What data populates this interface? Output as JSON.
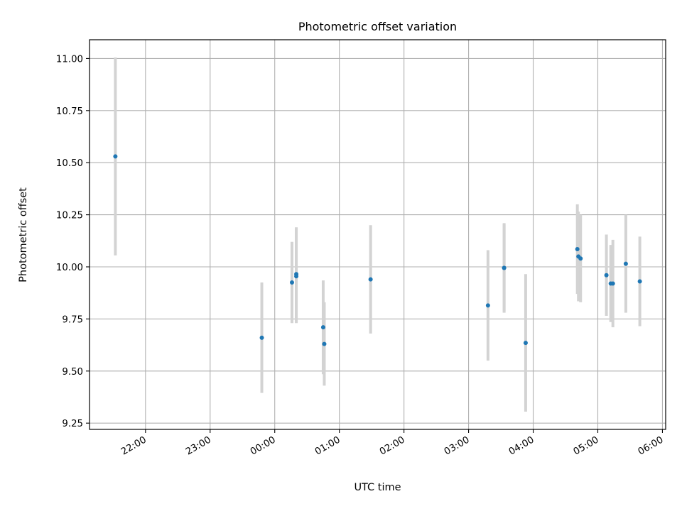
{
  "chart_data": {
    "type": "scatter",
    "title": "Photometric offset variation",
    "xlabel": "UTC time",
    "ylabel": "Photometric offset",
    "grid": true,
    "ylim": [
      9.22,
      11.09
    ],
    "xlim": [
      "21:08",
      "06:03"
    ],
    "yticks": [
      9.25,
      9.5,
      9.75,
      10.0,
      10.25,
      10.5,
      10.75,
      11.0
    ],
    "ytick_labels": [
      "9.25",
      "9.50",
      "9.75",
      "10.00",
      "10.25",
      "10.50",
      "10.75",
      "11.00"
    ],
    "xticks": [
      "22:00",
      "23:00",
      "00:00",
      "01:00",
      "02:00",
      "03:00",
      "04:00",
      "05:00",
      "06:00"
    ],
    "point_color": "#1f77b4",
    "errorbar_color": "#d3d3d3",
    "series": [
      {
        "points": [
          {
            "x": "21:32",
            "y": 10.53,
            "err": 0.475
          },
          {
            "x": "23:48",
            "y": 9.66,
            "err": 0.265
          },
          {
            "x": "00:16",
            "y": 9.925,
            "err": 0.195
          },
          {
            "x": "00:20",
            "y": 9.965,
            "err": 0.225
          },
          {
            "x": "00:20",
            "y": 9.955,
            "err": 0.225
          },
          {
            "x": "00:45",
            "y": 9.71,
            "err": 0.225
          },
          {
            "x": "00:46",
            "y": 9.63,
            "err": 0.2
          },
          {
            "x": "01:29",
            "y": 9.94,
            "err": 0.26
          },
          {
            "x": "03:18",
            "y": 9.815,
            "err": 0.265
          },
          {
            "x": "03:33",
            "y": 9.995,
            "err": 0.215
          },
          {
            "x": "03:33",
            "y": 9.995,
            "err": 0.21
          },
          {
            "x": "03:53",
            "y": 9.635,
            "err": 0.33
          },
          {
            "x": "04:41",
            "y": 10.085,
            "err": 0.215
          },
          {
            "x": "04:42",
            "y": 10.05,
            "err": 0.215
          },
          {
            "x": "04:44",
            "y": 10.04,
            "err": 0.21
          },
          {
            "x": "05:08",
            "y": 9.96,
            "err": 0.195
          },
          {
            "x": "05:12",
            "y": 9.92,
            "err": 0.185
          },
          {
            "x": "05:14",
            "y": 9.92,
            "err": 0.21
          },
          {
            "x": "05:26",
            "y": 10.015,
            "err": 0.235
          },
          {
            "x": "05:39",
            "y": 9.93,
            "err": 0.215
          }
        ]
      }
    ]
  }
}
